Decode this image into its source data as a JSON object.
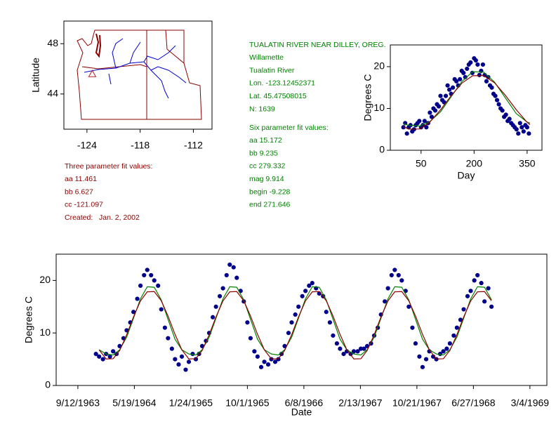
{
  "chart_data": [
    {
      "type": "map",
      "ylabel": "Latitude",
      "xlim": [
        -126.6,
        -109.9
      ],
      "ylim": [
        41.2,
        49.8
      ],
      "xticks": [
        -124,
        -118,
        -112
      ],
      "yticks": [
        44,
        48
      ],
      "x": [
        -123.4
      ],
      "values": [
        45.6
      ],
      "color": "#b22222"
    },
    {
      "type": "scatter",
      "xlabel": "Day",
      "ylabel": "Degrees C",
      "xlim": [
        -37,
        392
      ],
      "ylim": [
        0,
        25.2
      ],
      "xticks": [
        50,
        200,
        350
      ],
      "yticks": [
        0,
        10,
        20
      ],
      "series": [
        {
          "mode": "markers",
          "color": "#00008b",
          "x": [
            0,
            10,
            20,
            30,
            40,
            50,
            60,
            70,
            80,
            90,
            100,
            110,
            120,
            130,
            140,
            150,
            160,
            170,
            180,
            190,
            200,
            210,
            220,
            230,
            240,
            250,
            260,
            270,
            280,
            290,
            300,
            310,
            320,
            330,
            340,
            350,
            5,
            15,
            25,
            35,
            45,
            55,
            65,
            75,
            85,
            95,
            105,
            115,
            125,
            135,
            145,
            155,
            165,
            175,
            185,
            195,
            205,
            215,
            225,
            235,
            245,
            255,
            265,
            275,
            285,
            295,
            305,
            315,
            325,
            335,
            345,
            355
          ],
          "values": [
            5.5,
            4.0,
            6.0,
            5.0,
            6.5,
            5.5,
            7.0,
            6.5,
            8.0,
            9.5,
            10.5,
            12.0,
            13.0,
            14.5,
            15.0,
            16.5,
            17.0,
            18.5,
            19.5,
            21.0,
            22.0,
            20.5,
            19.0,
            18.0,
            17.5,
            15.0,
            13.0,
            11.0,
            9.5,
            8.5,
            7.5,
            6.0,
            5.0,
            6.5,
            4.5,
            5.5,
            6.5,
            5.5,
            4.5,
            6.0,
            7.0,
            6.0,
            5.5,
            9.0,
            10.0,
            11.0,
            13.0,
            11.5,
            15.5,
            13.5,
            17.0,
            15.5,
            19.0,
            17.5,
            20.5,
            18.5,
            21.5,
            18.0,
            20.5,
            16.5,
            15.5,
            13.5,
            12.0,
            10.0,
            8.0,
            7.0,
            6.5,
            5.5,
            4.0,
            5.5,
            6.0,
            4.0
          ]
        },
        {
          "mode": "line",
          "color": "#008000",
          "x": [
            0,
            15,
            46,
            74,
            105,
            135,
            166,
            196,
            227,
            258,
            288,
            319,
            349,
            358
          ],
          "values": [
            6.3,
            6.0,
            5.8,
            6.8,
            9.2,
            12.8,
            16.5,
            18.8,
            18.7,
            16.3,
            12.6,
            8.8,
            6.8,
            6.5
          ]
        },
        {
          "mode": "line",
          "color": "#8b0000",
          "x": [
            0,
            15,
            46,
            74,
            105,
            135,
            166,
            196,
            227,
            258,
            288,
            319,
            349,
            358
          ],
          "values": [
            5.68,
            5.05,
            5.09,
            6.67,
            9.66,
            13.04,
            16.1,
            17.83,
            17.88,
            16.13,
            13.21,
            9.72,
            6.79,
            6.12
          ]
        }
      ]
    },
    {
      "type": "scatter",
      "xlabel": "Date",
      "ylabel": "Degrees C",
      "xlim": [
        "1963-06-08",
        "1969-05-18"
      ],
      "ylim": [
        0,
        25
      ],
      "xticks": [
        {
          "value": "1963-09-12",
          "label": "9/12/1963"
        },
        {
          "value": "1964-05-19",
          "label": "5/19/1964"
        },
        {
          "value": "1965-01-24",
          "label": "1/24/1965"
        },
        {
          "value": "1965-10-01",
          "label": "10/1/1965"
        },
        {
          "value": "1966-06-08",
          "label": "6/8/1966"
        },
        {
          "value": "1967-02-13",
          "label": "2/13/1967"
        },
        {
          "value": "1967-10-21",
          "label": "10/21/1967"
        },
        {
          "value": "1968-06-27",
          "label": "6/27/1968"
        },
        {
          "value": "1969-03-04",
          "label": "3/4/1969"
        }
      ],
      "yticks": [
        0,
        10,
        20
      ],
      "series": [
        {
          "mode": "markers",
          "color": "#00008b",
          "x": [
            "1963-12-01",
            "1963-12-15",
            "1964-01-01",
            "1964-01-15",
            "1964-02-01",
            "1964-02-15",
            "1964-03-01",
            "1964-03-15",
            "1964-04-01",
            "1964-04-15",
            "1964-05-01",
            "1964-05-15",
            "1964-06-01",
            "1964-06-15",
            "1964-07-01",
            "1964-07-15",
            "1964-08-01",
            "1964-08-15",
            "1964-09-01",
            "1964-09-15",
            "1964-10-01",
            "1964-10-15",
            "1964-11-01",
            "1964-11-15",
            "1964-12-01",
            "1964-12-15",
            "1965-01-01",
            "1965-01-15",
            "1965-02-01",
            "1965-02-15",
            "1965-03-01",
            "1965-03-15",
            "1965-04-01",
            "1965-04-15",
            "1965-05-01",
            "1965-05-15",
            "1965-06-01",
            "1965-06-15",
            "1965-07-01",
            "1965-07-15",
            "1965-08-01",
            "1965-08-15",
            "1965-09-01",
            "1965-09-15",
            "1965-10-01",
            "1965-10-15",
            "1965-11-01",
            "1965-11-15",
            "1965-12-01",
            "1965-12-15",
            "1966-01-01",
            "1966-01-15",
            "1966-02-01",
            "1966-02-15",
            "1966-03-01",
            "1966-03-15",
            "1966-04-01",
            "1966-04-15",
            "1966-05-01",
            "1966-05-15",
            "1966-06-01",
            "1966-06-15",
            "1966-07-01",
            "1966-07-15",
            "1966-08-01",
            "1966-08-15",
            "1966-09-01",
            "1966-09-15",
            "1966-10-01",
            "1966-10-15",
            "1966-11-01",
            "1966-11-15",
            "1966-12-01",
            "1966-12-15",
            "1967-01-01",
            "1967-01-15",
            "1967-02-01",
            "1967-02-15",
            "1967-03-01",
            "1967-03-15",
            "1967-04-01",
            "1967-04-15",
            "1967-05-01",
            "1967-05-15",
            "1967-06-01",
            "1967-06-15",
            "1967-07-01",
            "1967-07-15",
            "1967-08-01",
            "1967-08-15",
            "1967-09-01",
            "1967-09-15",
            "1967-10-01",
            "1967-10-15",
            "1967-11-01",
            "1967-11-15",
            "1967-12-01",
            "1967-12-15",
            "1968-01-01",
            "1968-01-15",
            "1968-02-01",
            "1968-02-15",
            "1968-03-01",
            "1968-03-15",
            "1968-04-01",
            "1968-04-15",
            "1968-05-01",
            "1968-05-15",
            "1968-06-01",
            "1968-06-15",
            "1968-07-01",
            "1968-07-15",
            "1968-08-01",
            "1968-08-15",
            "1968-09-01",
            "1968-09-15"
          ],
          "values": [
            6.0,
            5.5,
            5.0,
            6.0,
            5.5,
            6.5,
            6.0,
            7.5,
            9.0,
            10.5,
            12.0,
            14.0,
            16.5,
            19.0,
            21.0,
            22.0,
            21.0,
            20.0,
            19.0,
            14.5,
            11.0,
            9.0,
            7.0,
            5.0,
            4.0,
            5.5,
            3.0,
            4.5,
            6.0,
            5.0,
            6.0,
            7.5,
            8.5,
            10.0,
            13.0,
            15.0,
            17.0,
            18.5,
            21.0,
            23.0,
            22.5,
            20.5,
            18.0,
            16.0,
            12.0,
            9.0,
            6.5,
            5.5,
            3.5,
            4.5,
            4.0,
            5.0,
            4.5,
            5.0,
            6.0,
            7.5,
            10.0,
            12.0,
            13.5,
            15.0,
            17.0,
            18.0,
            19.0,
            19.5,
            18.5,
            17.5,
            17.0,
            14.0,
            12.0,
            9.5,
            8.0,
            7.0,
            6.0,
            6.5,
            6.0,
            6.5,
            6.5,
            7.0,
            7.0,
            7.5,
            8.0,
            9.5,
            11.0,
            13.5,
            16.0,
            18.5,
            21.0,
            22.0,
            21.0,
            20.0,
            18.0,
            15.0,
            11.0,
            8.0,
            5.5,
            3.5,
            5.0,
            6.5,
            5.5,
            5.0,
            6.0,
            6.5,
            7.0,
            8.0,
            9.5,
            11.0,
            12.5,
            14.5,
            17.0,
            18.0,
            20.0,
            21.0,
            19.5,
            16.0,
            18.5,
            15.0
          ]
        },
        {
          "mode": "line",
          "color": "#008000",
          "x": [
            "1963-12-15",
            "1964-01-15",
            "1964-02-15",
            "1964-03-15",
            "1964-04-15",
            "1964-05-15",
            "1964-06-15",
            "1964-07-15",
            "1964-08-15",
            "1964-09-15",
            "1964-10-15",
            "1964-11-15",
            "1964-12-15",
            "1965-01-15",
            "1965-02-15",
            "1965-03-15",
            "1965-04-15",
            "1965-05-15",
            "1965-06-15",
            "1965-07-15",
            "1965-08-15",
            "1965-09-15",
            "1965-10-15",
            "1965-11-15",
            "1965-12-15",
            "1966-01-15",
            "1966-02-15",
            "1966-03-15",
            "1966-04-15",
            "1966-05-15",
            "1966-06-15",
            "1966-07-15",
            "1966-08-15",
            "1966-09-15",
            "1966-10-15",
            "1966-11-15",
            "1966-12-15",
            "1967-01-15",
            "1967-02-15",
            "1967-03-15",
            "1967-04-15",
            "1967-05-15",
            "1967-06-15",
            "1967-07-15",
            "1967-08-15",
            "1967-09-15",
            "1967-10-15",
            "1967-11-15",
            "1967-12-15",
            "1968-01-15",
            "1968-02-15",
            "1968-03-15",
            "1968-04-15",
            "1968-05-15",
            "1968-06-15",
            "1968-07-15",
            "1968-08-15",
            "1968-09-15"
          ],
          "values": [
            6.8,
            6.0,
            5.8,
            6.8,
            9.2,
            12.8,
            16.5,
            18.8,
            18.7,
            16.3,
            12.6,
            8.8,
            6.8,
            6.0,
            5.8,
            6.8,
            9.2,
            12.8,
            16.5,
            18.8,
            18.7,
            16.3,
            12.6,
            8.8,
            6.8,
            6.0,
            5.8,
            6.8,
            9.2,
            12.8,
            16.5,
            18.8,
            18.7,
            16.3,
            12.6,
            8.8,
            6.8,
            6.0,
            5.8,
            6.8,
            9.2,
            12.8,
            16.5,
            18.8,
            18.7,
            16.3,
            12.6,
            8.8,
            6.8,
            6.0,
            5.8,
            6.8,
            9.2,
            12.8,
            16.5,
            18.8,
            18.7,
            16.3
          ]
        },
        {
          "mode": "line",
          "color": "#8b0000",
          "x": [
            "1963-12-15",
            "1964-01-15",
            "1964-02-15",
            "1964-03-15",
            "1964-04-15",
            "1964-05-15",
            "1964-06-15",
            "1964-07-15",
            "1964-08-15",
            "1964-09-15",
            "1964-10-15",
            "1964-11-15",
            "1964-12-15",
            "1965-01-15",
            "1965-02-15",
            "1965-03-15",
            "1965-04-15",
            "1965-05-15",
            "1965-06-15",
            "1965-07-15",
            "1965-08-15",
            "1965-09-15",
            "1965-10-15",
            "1965-11-15",
            "1965-12-15",
            "1966-01-15",
            "1966-02-15",
            "1966-03-15",
            "1966-04-15",
            "1966-05-15",
            "1966-06-15",
            "1966-07-15",
            "1966-08-15",
            "1966-09-15",
            "1966-10-15",
            "1966-11-15",
            "1966-12-15",
            "1967-01-15",
            "1967-02-15",
            "1967-03-15",
            "1967-04-15",
            "1967-05-15",
            "1967-06-15",
            "1967-07-15",
            "1967-08-15",
            "1967-09-15",
            "1967-10-15",
            "1967-11-15",
            "1967-12-15",
            "1968-01-15",
            "1968-02-15",
            "1968-03-15",
            "1968-04-15",
            "1968-05-15",
            "1968-06-15",
            "1968-07-15",
            "1968-08-15",
            "1968-09-15"
          ],
          "values": [
            6.79,
            5.05,
            5.09,
            6.67,
            9.66,
            13.04,
            16.1,
            17.83,
            17.88,
            16.13,
            13.21,
            9.72,
            6.79,
            5.05,
            5.09,
            6.67,
            9.66,
            13.04,
            16.1,
            17.83,
            17.88,
            16.13,
            13.21,
            9.72,
            6.79,
            5.05,
            5.09,
            6.67,
            9.66,
            13.04,
            16.1,
            17.83,
            17.88,
            16.13,
            13.21,
            9.72,
            6.79,
            5.05,
            5.09,
            6.67,
            9.66,
            13.04,
            16.1,
            17.83,
            17.88,
            16.13,
            13.21,
            9.72,
            6.79,
            5.05,
            5.09,
            6.67,
            9.66,
            13.04,
            16.1,
            17.83,
            17.88,
            16.13
          ]
        }
      ]
    }
  ],
  "text_blocks": {
    "three_param": [
      "Three parameter fit values:",
      "aa 11.461",
      "bb 6.627",
      "cc -121.097",
      "Created:   Jan. 2, 2002"
    ],
    "station": [
      "TUALATIN RIVER NEAR DILLEY, OREG.",
      "Willamette",
      "Tualatin River",
      "Lon. -123.12452371",
      "Lat. 45.47508015",
      "N: 1639"
    ],
    "six_param": [
      "Six parameter fit values:",
      "aa 15.172",
      "bb 9.235",
      "cc 279.332",
      "mag 9.914",
      "begin -9.228",
      "end 271.646"
    ]
  }
}
